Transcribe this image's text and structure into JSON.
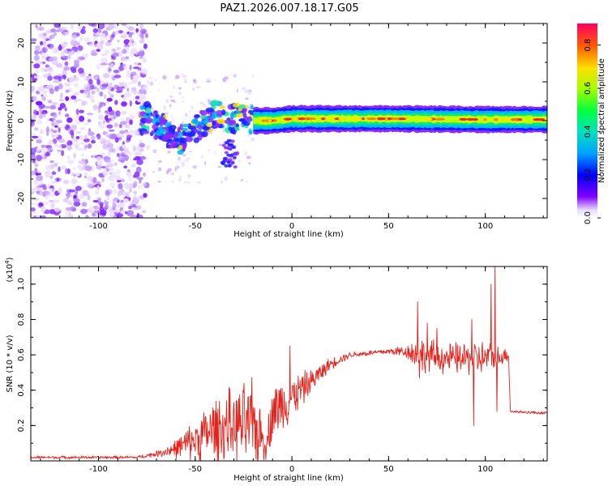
{
  "title": "PAZ1.2026.007.18.17.G05",
  "chart_data": [
    {
      "type": "heatmap",
      "name": "frequency-spectrogram",
      "xlabel": "Height of straight line (km)",
      "ylabel": "Frequency (Hz)",
      "xlim": [
        -135,
        132
      ],
      "ylim": [
        -25,
        25
      ],
      "xticks": [
        -100,
        -50,
        0,
        50,
        100
      ],
      "xtick_labels": [
        "-100",
        "-50",
        "0",
        "50",
        "100"
      ],
      "yticks": [
        -20,
        -10,
        0,
        10,
        20
      ],
      "ytick_labels": [
        "-20",
        "-10",
        "0",
        "10",
        "20"
      ],
      "noise_region": {
        "x_start": -135,
        "x_end": -75,
        "freq_spread": 25
      },
      "ridge": [
        {
          "x": -75,
          "f": 1.0
        },
        {
          "x": -70,
          "f": -1.5
        },
        {
          "x": -65,
          "f": -2.5
        },
        {
          "x": -60,
          "f": -5.0
        },
        {
          "x": -55,
          "f": -4.5
        },
        {
          "x": -50,
          "f": -2.0
        },
        {
          "x": -45,
          "f": 0.0
        },
        {
          "x": -40,
          "f": 1.5
        },
        {
          "x": -35,
          "f": 1.0
        },
        {
          "x": -30,
          "f": 0.5
        },
        {
          "x": -25,
          "f": 0.5
        },
        {
          "x": -20,
          "f": 0.0
        },
        {
          "x": -10,
          "f": 0.0
        },
        {
          "x": 0,
          "f": 0.5
        },
        {
          "x": 50,
          "f": 0.5
        },
        {
          "x": 100,
          "f": 0.3
        },
        {
          "x": 132,
          "f": 0.3
        }
      ],
      "colorbar": {
        "label": "Normalized spectral amplitude",
        "range": [
          0.0,
          0.9
        ],
        "ticks": [
          0.0,
          0.2,
          0.4,
          0.6,
          0.8
        ],
        "tick_labels": [
          "0.0",
          "0.2",
          "0.4",
          "0.6",
          "0.8"
        ],
        "colors": [
          "#ffffff",
          "#8000ff",
          "#0000ff",
          "#00c0ff",
          "#00ff80",
          "#80ff00",
          "#ffff00",
          "#ff8000",
          "#ff0000",
          "#ff0080"
        ]
      }
    },
    {
      "type": "line",
      "name": "snr-profile",
      "xlabel": "Height of straight line (km)",
      "ylabel": "SNR (10 * v/v)",
      "y_multiplier": "(x10",
      "y_multiplier_exp": "4",
      "y_multiplier_close": ")",
      "xlim": [
        -135,
        132
      ],
      "ylim": [
        0,
        1.1
      ],
      "xticks": [
        -100,
        -50,
        0,
        50,
        100
      ],
      "xtick_labels": [
        "-100",
        "-50",
        "0",
        "50",
        "100"
      ],
      "yticks": [
        0.2,
        0.4,
        0.6,
        0.8,
        1.0
      ],
      "ytick_labels": [
        "0.2",
        "0.4",
        "0.6",
        "0.8",
        "1.0"
      ],
      "color": "#e8211a",
      "envelope": [
        {
          "x": -135,
          "base": 0.02,
          "amp": 0.01
        },
        {
          "x": -80,
          "base": 0.02,
          "amp": 0.01
        },
        {
          "x": -70,
          "base": 0.04,
          "amp": 0.02
        },
        {
          "x": -60,
          "base": 0.07,
          "amp": 0.06
        },
        {
          "x": -50,
          "base": 0.12,
          "amp": 0.14
        },
        {
          "x": -40,
          "base": 0.18,
          "amp": 0.22
        },
        {
          "x": -30,
          "base": 0.2,
          "amp": 0.25
        },
        {
          "x": -20,
          "base": 0.2,
          "amp": 0.3
        },
        {
          "x": -13,
          "base": 0.1,
          "amp": 0.1
        },
        {
          "x": -10,
          "base": 0.28,
          "amp": 0.2
        },
        {
          "x": 0,
          "base": 0.36,
          "amp": 0.15
        },
        {
          "x": 10,
          "base": 0.45,
          "amp": 0.08
        },
        {
          "x": 20,
          "base": 0.55,
          "amp": 0.04
        },
        {
          "x": 30,
          "base": 0.6,
          "amp": 0.02
        },
        {
          "x": 50,
          "base": 0.62,
          "amp": 0.02
        },
        {
          "x": 60,
          "base": 0.62,
          "amp": 0.05
        },
        {
          "x": 65,
          "base": 0.6,
          "amp": 0.12
        },
        {
          "x": 80,
          "base": 0.58,
          "amp": 0.1
        },
        {
          "x": 100,
          "base": 0.58,
          "amp": 0.12
        },
        {
          "x": 112,
          "base": 0.6,
          "amp": 0.04
        },
        {
          "x": 113,
          "base": 0.28,
          "amp": 0.01
        },
        {
          "x": 132,
          "base": 0.27,
          "amp": 0.01
        }
      ],
      "spikes": [
        {
          "x": 65,
          "y": 0.9
        },
        {
          "x": 66,
          "y": 0.47
        },
        {
          "x": 70,
          "y": 0.78
        },
        {
          "x": 75,
          "y": 0.75
        },
        {
          "x": 93,
          "y": 0.8
        },
        {
          "x": 94,
          "y": 0.2
        },
        {
          "x": 103,
          "y": 1.0
        },
        {
          "x": 105,
          "y": 1.1
        },
        {
          "x": 106,
          "y": 0.28
        },
        {
          "x": -1,
          "y": 0.65
        },
        {
          "x": -30,
          "y": 0.33
        }
      ]
    }
  ]
}
